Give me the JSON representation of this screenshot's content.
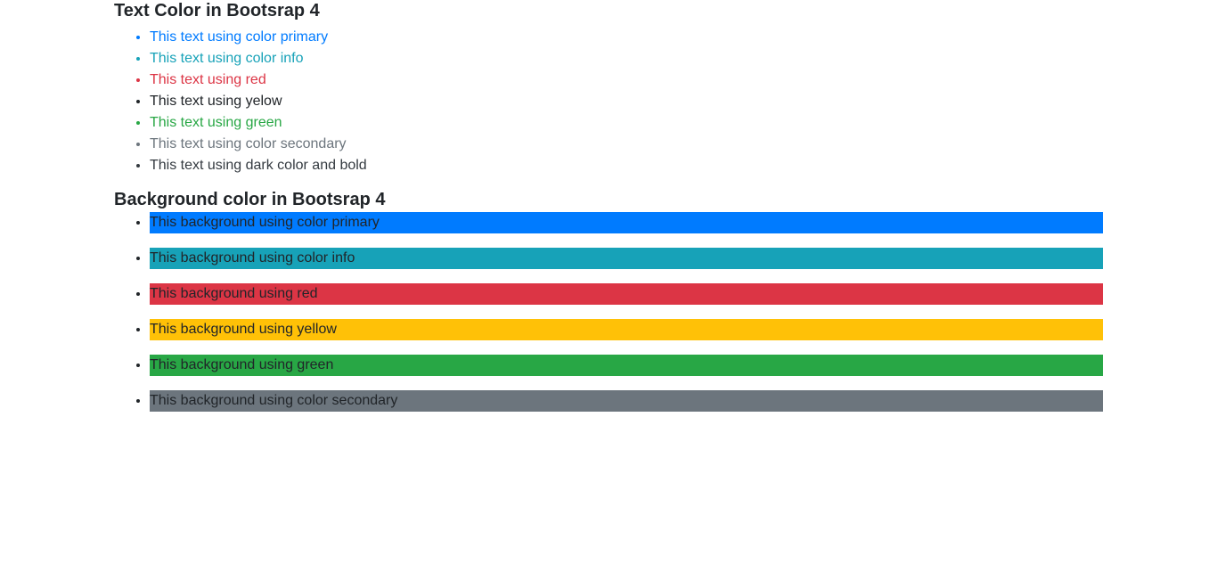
{
  "text_section": {
    "title": "Text Color in Bootsrap 4",
    "items": [
      {
        "label": "This text using color primary",
        "color": "#007bff",
        "bullet": "#007bff",
        "bold": false
      },
      {
        "label": "This text using color info",
        "color": "#17a2b8",
        "bullet": "#17a2b8",
        "bold": false
      },
      {
        "label": "This text using red",
        "color": "#dc3545",
        "bullet": "#dc3545",
        "bold": false
      },
      {
        "label": "This text using yelow",
        "color": "#212529",
        "bullet": "#212529",
        "bold": false
      },
      {
        "label": "This text using green",
        "color": "#28a745",
        "bullet": "#28a745",
        "bold": false
      },
      {
        "label": "This text using color secondary",
        "color": "#6c757d",
        "bullet": "#6c757d",
        "bold": false
      },
      {
        "label": "This text using dark color and bold",
        "color": "#343a40",
        "bullet": "#343a40",
        "bold": false
      }
    ]
  },
  "background_section": {
    "title": "Background color in Bootsrap 4",
    "items": [
      {
        "label": "This background using color primary",
        "background": "#007bff"
      },
      {
        "label": "This background using color info",
        "background": "#17a2b8"
      },
      {
        "label": "This background using red",
        "background": "#dc3545"
      },
      {
        "label": "This background using yellow",
        "background": "#ffc107"
      },
      {
        "label": "This background using green",
        "background": "#28a745"
      },
      {
        "label": "This background using color secondary",
        "background": "#6c757d"
      }
    ]
  }
}
